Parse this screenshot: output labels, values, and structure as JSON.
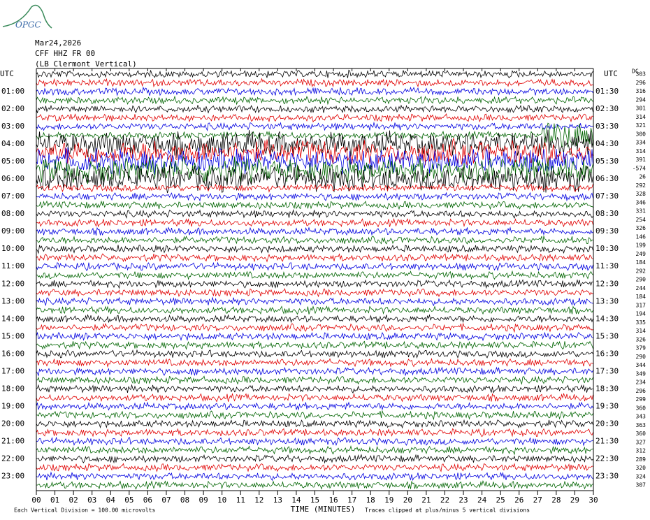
{
  "logo": "OPGC",
  "header": {
    "date": "Mar24,2026",
    "station": "CFF HHZ FR 00",
    "location": "(LB Clermont Vertical)"
  },
  "left_axis": {
    "title": "UTC",
    "labels": [
      "01:00",
      "02:00",
      "03:00",
      "04:00",
      "05:00",
      "06:00",
      "07:00",
      "08:00",
      "09:00",
      "10:00",
      "11:00",
      "12:00",
      "13:00",
      "14:00",
      "15:00",
      "16:00",
      "17:00",
      "18:00",
      "19:00",
      "20:00",
      "21:00",
      "22:00",
      "23:00"
    ]
  },
  "right_axis": {
    "title": "UTC",
    "labels": [
      "01:30",
      "02:30",
      "03:30",
      "04:30",
      "05:30",
      "06:30",
      "07:30",
      "08:30",
      "09:30",
      "10:30",
      "11:30",
      "12:30",
      "13:30",
      "14:30",
      "15:30",
      "16:30",
      "17:30",
      "18:30",
      "19:30",
      "20:30",
      "21:30",
      "22:30",
      "23:30"
    ]
  },
  "offsets": {
    "title": "DC",
    "values": [
      303,
      296,
      316,
      294,
      301,
      314,
      321,
      300,
      334,
      314,
      391,
      -574,
      26,
      292,
      328,
      346,
      331,
      254,
      326,
      146,
      199,
      249,
      184,
      292,
      290,
      244,
      184,
      317,
      194,
      335,
      314,
      326,
      379,
      290,
      344,
      349,
      234,
      296,
      299,
      360,
      343,
      363,
      360,
      327,
      312,
      289,
      320,
      324,
      307
    ]
  },
  "x_axis": {
    "title": "TIME (MINUTES)",
    "labels": [
      "00",
      "01",
      "02",
      "03",
      "04",
      "05",
      "06",
      "07",
      "08",
      "09",
      "10",
      "11",
      "12",
      "13",
      "14",
      "15",
      "16",
      "17",
      "18",
      "19",
      "20",
      "21",
      "22",
      "23",
      "24",
      "25",
      "26",
      "27",
      "28",
      "29",
      "30"
    ]
  },
  "footer": {
    "scale": "Each Vertical Division =  100.00 microvolts",
    "clip": "Traces clipped at plus/minus 5 vertical divisions"
  }
}
